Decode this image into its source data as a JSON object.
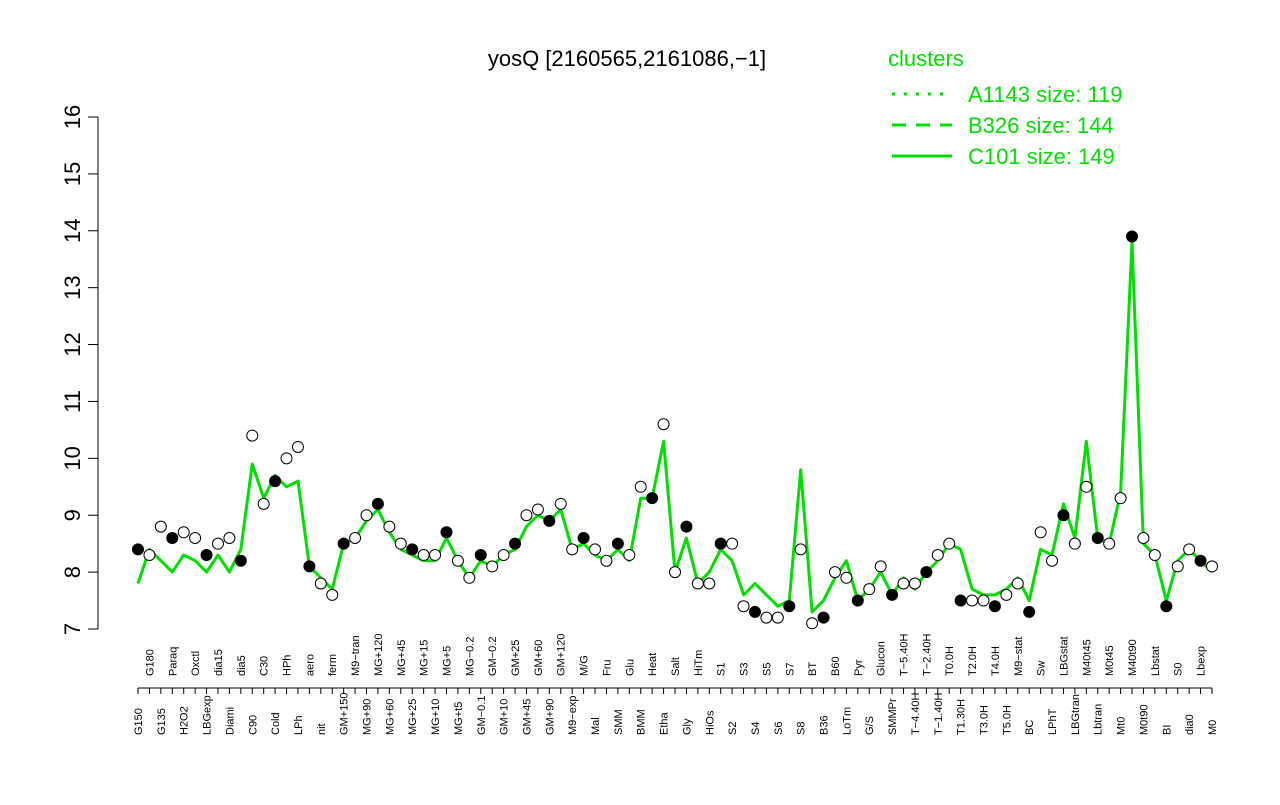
{
  "chart_data": {
    "type": "line",
    "title": "yosQ [2160565,2161086,−1]",
    "xlabel": "",
    "ylabel": "",
    "ylim": [
      7,
      16
    ],
    "yticks": [
      7,
      8,
      9,
      10,
      11,
      12,
      13,
      14,
      15,
      16
    ],
    "legend": {
      "title": "clusters",
      "position": "top-right",
      "entries": [
        {
          "label": "A1143 size: 119",
          "style": "dotted"
        },
        {
          "label": "B326 size: 144",
          "style": "dashed"
        },
        {
          "label": "C101 size: 149",
          "style": "solid"
        }
      ]
    },
    "xtick_labels": [
      "G150",
      "G180",
      "G135",
      "Paraq",
      "H2O2",
      "Oxctl",
      "LBGexp",
      "dia15",
      "Diami",
      "dia5",
      "C90",
      "C30",
      "Cold",
      "HPh",
      "LPh",
      "aero",
      "nit",
      "ferm",
      "GM+150",
      "M9−tran",
      "MG+90",
      "MG+120",
      "MG+60",
      "MG+45",
      "MG+25",
      "MG+15",
      "MG+10",
      "MG+5",
      "MG+t5",
      "MG−0.2",
      "GM−0.1",
      "GM−0.2",
      "GM+10",
      "GM+25",
      "GM+45",
      "GM+60",
      "GM+90",
      "GM+120",
      "M9−exp",
      "M/G",
      "Mal",
      "Fru",
      "SMM",
      "Glu",
      "BMM",
      "Heat",
      "Etha",
      "Salt",
      "Gly",
      "HiTm",
      "HiOs",
      "S1",
      "S2",
      "S3",
      "S4",
      "S5",
      "S6",
      "S7",
      "S8",
      "BT",
      "B36",
      "B60",
      "LoTm",
      "Pyr",
      "G/S",
      "Glucon",
      "SMMPr",
      "T−5.40H",
      "T−4.40H",
      "T−2.40H",
      "T−1.40H",
      "T0.0H",
      "T1.30H",
      "T2.0H",
      "T3.0H",
      "T4.0H",
      "T5.0H",
      "M9−stat",
      "BC",
      "Sw",
      "LPhT",
      "LBGstat",
      "LBGtran",
      "M40t45",
      "Lbtran",
      "M0t45",
      "Mt0",
      "M40t90",
      "M0t90",
      "Lbstat",
      "BI",
      "S0",
      "dia0",
      "Lbexp",
      "M0"
    ],
    "series": [
      {
        "style": "solid",
        "values": [
          7.8,
          8.4,
          8.2,
          8.0,
          8.3,
          8.2,
          8.0,
          8.3,
          8.0,
          8.4,
          9.9,
          9.3,
          9.7,
          9.5,
          9.6,
          8.1,
          7.9,
          7.7,
          8.5,
          8.6,
          8.9,
          9.1,
          8.7,
          8.4,
          8.3,
          8.2,
          8.2,
          8.6,
          8.2,
          7.9,
          8.2,
          8.1,
          8.3,
          8.4,
          8.8,
          9.0,
          8.9,
          9.1,
          8.4,
          8.5,
          8.3,
          8.2,
          8.4,
          8.2,
          9.3,
          9.3,
          10.3,
          8.0,
          8.6,
          7.8,
          8.0,
          8.4,
          8.2,
          7.6,
          7.8,
          7.6,
          7.4,
          7.5,
          9.8,
          7.3,
          7.5,
          7.9,
          8.2,
          7.5,
          7.7,
          8.0,
          7.6,
          7.9,
          7.7,
          8.0,
          8.2,
          8.5,
          8.4,
          7.7,
          7.6,
          7.6,
          7.7,
          7.9,
          7.5,
          8.4,
          8.3,
          9.2,
          8.6,
          10.3,
          8.6,
          8.5,
          9.4,
          13.8,
          8.5,
          8.3,
          7.5,
          8.2,
          8.4,
          8.2,
          8.0
        ]
      },
      {
        "style": "points",
        "values": [
          8.4,
          8.3,
          8.8,
          8.6,
          8.7,
          8.6,
          8.3,
          8.5,
          8.6,
          8.2,
          10.4,
          9.2,
          9.6,
          10.0,
          10.2,
          8.1,
          7.8,
          7.6,
          8.5,
          8.6,
          9.0,
          9.2,
          8.8,
          8.5,
          8.4,
          8.3,
          8.3,
          8.7,
          8.2,
          7.9,
          8.3,
          8.1,
          8.3,
          8.5,
          9.0,
          9.1,
          8.9,
          9.2,
          8.4,
          8.6,
          8.4,
          8.2,
          8.5,
          8.3,
          9.5,
          9.3,
          10.6,
          8.0,
          8.8,
          7.8,
          7.8,
          8.5,
          8.5,
          7.4,
          7.3,
          7.2,
          7.2,
          7.4,
          8.4,
          7.1,
          7.2,
          8.0,
          7.9,
          7.5,
          7.7,
          8.1,
          7.6,
          7.8,
          7.8,
          8.0,
          8.3,
          8.5,
          7.5,
          7.5,
          7.5,
          7.4,
          7.6,
          7.8,
          7.3,
          8.7,
          8.2,
          9.0,
          8.5,
          9.5,
          8.6,
          8.5,
          9.3,
          13.9,
          8.6,
          8.3,
          7.4,
          8.1,
          8.4,
          8.2,
          8.1
        ]
      }
    ]
  }
}
